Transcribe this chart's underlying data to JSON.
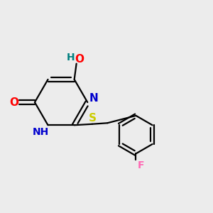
{
  "background_color": "#ececec",
  "bond_color": "#000000",
  "line_width": 1.6,
  "atom_colors": {
    "O": "#ff0000",
    "N": "#0000cd",
    "S": "#cccc00",
    "F": "#ff69b4",
    "H_label": "#008080",
    "C": "#000000"
  },
  "font_size": 10,
  "fig_size": [
    3.0,
    3.0
  ],
  "dpi": 100
}
